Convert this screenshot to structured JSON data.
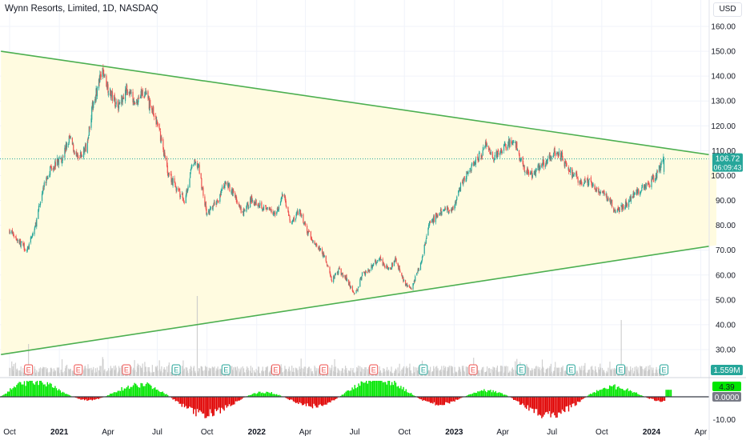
{
  "title": "Wynn Resorts, Limited, 1D, NASDAQ",
  "currency_button": "USD",
  "colors": {
    "up": "#26a69a",
    "down": "#ef5350",
    "trend": "#4caf50",
    "fill": "#fffbe0",
    "price_label": "#26a69a",
    "osc_up": "#00e600",
    "osc_down": "#e00000",
    "volume": "#c8c8c8"
  },
  "chart_data": [
    {
      "type": "candlestick",
      "title": "Wynn Resorts, Limited, 1D, NASDAQ",
      "x_ticks": [
        "Oct",
        "2021",
        "Apr",
        "Jul",
        "Oct",
        "2022",
        "Apr",
        "Jul",
        "Oct",
        "2023",
        "Apr",
        "Jul",
        "Oct",
        "2024",
        "Apr"
      ],
      "y_ticks": [
        160,
        150,
        140,
        130,
        120,
        110,
        100,
        90,
        80,
        70,
        60,
        50,
        40,
        30
      ],
      "ylim": [
        26,
        164
      ],
      "last_price": "106.72",
      "countdown": "06:09:43",
      "close_path": [
        [
          "2020-10-01",
          78
        ],
        [
          "2020-10-20",
          73
        ],
        [
          "2020-11-03",
          70
        ],
        [
          "2020-11-18",
          80
        ],
        [
          "2020-12-01",
          94
        ],
        [
          "2020-12-15",
          103
        ],
        [
          "2021-01-05",
          107
        ],
        [
          "2021-01-20",
          115
        ],
        [
          "2021-02-05",
          106
        ],
        [
          "2021-02-20",
          112
        ],
        [
          "2021-03-05",
          130
        ],
        [
          "2021-03-15",
          137
        ],
        [
          "2021-03-22",
          142
        ],
        [
          "2021-04-05",
          133
        ],
        [
          "2021-04-20",
          128
        ],
        [
          "2021-05-05",
          135
        ],
        [
          "2021-05-20",
          129
        ],
        [
          "2021-06-05",
          134
        ],
        [
          "2021-06-20",
          127
        ],
        [
          "2021-07-05",
          118
        ],
        [
          "2021-07-20",
          102
        ],
        [
          "2021-08-05",
          95
        ],
        [
          "2021-08-20",
          90
        ],
        [
          "2021-09-05",
          105
        ],
        [
          "2021-09-15",
          104
        ],
        [
          "2021-10-01",
          84
        ],
        [
          "2021-10-20",
          90
        ],
        [
          "2021-11-05",
          97
        ],
        [
          "2021-11-20",
          93
        ],
        [
          "2021-12-05",
          84
        ],
        [
          "2021-12-20",
          90
        ],
        [
          "2022-01-05",
          89
        ],
        [
          "2022-01-20",
          86
        ],
        [
          "2022-02-05",
          85
        ],
        [
          "2022-02-20",
          93
        ],
        [
          "2022-03-05",
          80
        ],
        [
          "2022-03-20",
          86
        ],
        [
          "2022-04-05",
          77
        ],
        [
          "2022-04-20",
          72
        ],
        [
          "2022-05-05",
          68
        ],
        [
          "2022-05-20",
          58
        ],
        [
          "2022-06-01",
          62
        ],
        [
          "2022-06-15",
          59
        ],
        [
          "2022-07-01",
          52
        ],
        [
          "2022-07-15",
          60
        ],
        [
          "2022-08-01",
          63
        ],
        [
          "2022-08-15",
          67
        ],
        [
          "2022-09-01",
          62
        ],
        [
          "2022-09-15",
          66
        ],
        [
          "2022-10-01",
          57
        ],
        [
          "2022-10-15",
          55
        ],
        [
          "2022-11-01",
          65
        ],
        [
          "2022-11-15",
          80
        ],
        [
          "2022-12-01",
          84
        ],
        [
          "2022-12-15",
          86
        ],
        [
          "2023-01-03",
          88
        ],
        [
          "2023-01-15",
          97
        ],
        [
          "2023-02-01",
          103
        ],
        [
          "2023-02-15",
          107
        ],
        [
          "2023-03-01",
          112
        ],
        [
          "2023-03-15",
          107
        ],
        [
          "2023-04-01",
          110
        ],
        [
          "2023-04-15",
          114
        ],
        [
          "2023-04-25",
          112
        ],
        [
          "2023-05-10",
          103
        ],
        [
          "2023-05-25",
          100
        ],
        [
          "2023-06-10",
          104
        ],
        [
          "2023-06-25",
          107
        ],
        [
          "2023-07-10",
          110
        ],
        [
          "2023-07-25",
          105
        ],
        [
          "2023-08-10",
          100
        ],
        [
          "2023-08-25",
          97
        ],
        [
          "2023-09-10",
          98
        ],
        [
          "2023-09-25",
          93
        ],
        [
          "2023-10-10",
          92
        ],
        [
          "2023-10-25",
          86
        ],
        [
          "2023-11-10",
          87
        ],
        [
          "2023-11-25",
          92
        ],
        [
          "2023-12-10",
          94
        ],
        [
          "2023-12-25",
          96
        ],
        [
          "2024-01-10",
          100
        ],
        [
          "2024-01-24",
          106.72
        ]
      ],
      "trendlines": [
        {
          "from": [
            "2020-09-15",
            150
          ],
          "to": [
            "2024-04-30",
            108
          ]
        },
        {
          "from": [
            "2020-09-15",
            28
          ],
          "to": [
            "2024-04-30",
            72
          ]
        }
      ],
      "earnings_markers": [
        {
          "date": "2020-11-05",
          "label": "E"
        },
        {
          "date": "2021-02-05",
          "label": "E"
        },
        {
          "date": "2021-05-05",
          "label": "E"
        },
        {
          "date": "2021-08-05",
          "label": "E"
        },
        {
          "date": "2021-11-05",
          "label": "E"
        },
        {
          "date": "2022-02-05",
          "label": "E"
        },
        {
          "date": "2022-05-05",
          "label": "E"
        },
        {
          "date": "2022-08-05",
          "label": "E"
        },
        {
          "date": "2022-11-05",
          "label": "E"
        },
        {
          "date": "2023-02-05",
          "label": "E"
        },
        {
          "date": "2023-05-05",
          "label": "E"
        },
        {
          "date": "2023-08-05",
          "label": "E"
        },
        {
          "date": "2023-11-05",
          "label": "E"
        },
        {
          "date": "2024-01-24",
          "label": "E"
        }
      ]
    },
    {
      "type": "bar",
      "series": [
        {
          "name": "Volume",
          "last": "1.559M"
        }
      ],
      "spikes": [
        [
          "2020-11-05",
          40
        ],
        [
          "2021-09-13",
          100
        ],
        [
          "2023-11-06",
          70
        ]
      ]
    },
    {
      "type": "bar",
      "y_ticks": [
        "-10.00"
      ],
      "ylim": [
        -15,
        10
      ],
      "last_value": "4.39",
      "zero_label": "0.0000"
    }
  ]
}
